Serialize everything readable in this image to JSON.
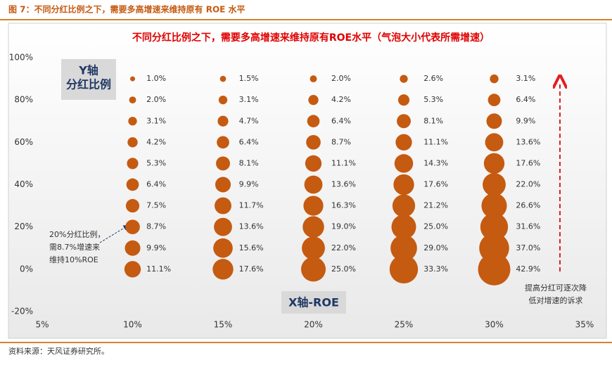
{
  "figure_caption": "图 7：不同分红比例之下，需要多高增速来维持原有 ROE 水平",
  "source": "资料来源：天风证券研究所。",
  "chart_data": {
    "type": "bubble",
    "title": "不同分红比例之下，需要多高增速来维持原有ROE水平（气泡大小代表所需增速）",
    "x_axis_label": "X轴-ROE",
    "y_axis_label": [
      "Y轴",
      "分红比例"
    ],
    "annotations": [
      [
        "20%分红比例，",
        "需8.7%增速来",
        "维持10%ROE"
      ],
      [
        "提高分红可逐次降",
        "低对增速的诉求"
      ]
    ],
    "color": "#c55a11",
    "x": [
      10,
      10,
      10,
      10,
      10,
      10,
      10,
      10,
      10,
      10,
      15,
      15,
      15,
      15,
      15,
      15,
      15,
      15,
      15,
      15,
      20,
      20,
      20,
      20,
      20,
      20,
      20,
      20,
      20,
      20,
      25,
      25,
      25,
      25,
      25,
      25,
      25,
      25,
      25,
      25,
      30,
      30,
      30,
      30,
      30,
      30,
      30,
      30,
      30,
      30
    ],
    "y": [
      90,
      80,
      70,
      60,
      50,
      40,
      30,
      20,
      10,
      0,
      90,
      80,
      70,
      60,
      50,
      40,
      30,
      20,
      10,
      0,
      90,
      80,
      70,
      60,
      50,
      40,
      30,
      20,
      10,
      0,
      90,
      80,
      70,
      60,
      50,
      40,
      30,
      20,
      10,
      0,
      90,
      80,
      70,
      60,
      50,
      40,
      30,
      20,
      10,
      0
    ],
    "sizes": [
      1.0,
      2.0,
      3.1,
      4.2,
      5.3,
      6.4,
      7.5,
      8.7,
      9.9,
      11.1,
      1.5,
      3.1,
      4.7,
      6.4,
      8.1,
      9.9,
      11.7,
      13.6,
      15.6,
      17.6,
      2.0,
      4.2,
      6.4,
      8.7,
      11.1,
      13.6,
      16.3,
      19.0,
      22.0,
      25.0,
      2.6,
      5.3,
      8.1,
      11.1,
      14.3,
      17.6,
      21.2,
      25.0,
      29.0,
      33.3,
      3.1,
      6.4,
      9.9,
      13.6,
      17.6,
      22.0,
      26.6,
      31.6,
      37.0,
      42.9
    ],
    "value_labels": [
      "1.0%",
      "2.0%",
      "3.1%",
      "4.2%",
      "5.3%",
      "6.4%",
      "7.5%",
      "8.7%",
      "9.9%",
      "11.1%",
      "1.5%",
      "3.1%",
      "4.7%",
      "6.4%",
      "8.1%",
      "9.9%",
      "11.7%",
      "13.6%",
      "15.6%",
      "17.6%",
      "2.0%",
      "4.2%",
      "6.4%",
      "8.7%",
      "11.1%",
      "13.6%",
      "16.3%",
      "19.0%",
      "22.0%",
      "25.0%",
      "2.6%",
      "5.3%",
      "8.1%",
      "11.1%",
      "14.3%",
      "17.6%",
      "21.2%",
      "25.0%",
      "29.0%",
      "33.3%",
      "3.1%",
      "6.4%",
      "9.9%",
      "13.6%",
      "17.6%",
      "22.0%",
      "26.6%",
      "31.6%",
      "37.0%",
      "42.9%"
    ],
    "xlim": [
      5,
      35
    ],
    "ylim": [
      -20,
      100
    ],
    "xticks": [
      {
        "value": 5,
        "label": "5%"
      },
      {
        "value": 10,
        "label": "10%"
      },
      {
        "value": 15,
        "label": "15%"
      },
      {
        "value": 20,
        "label": "20%"
      },
      {
        "value": 25,
        "label": "25%"
      },
      {
        "value": 30,
        "label": "30%"
      },
      {
        "value": 35,
        "label": "35%"
      }
    ],
    "yticks": [
      {
        "value": -20,
        "label": "-20%"
      },
      {
        "value": 0,
        "label": "0%"
      },
      {
        "value": 20,
        "label": "20%"
      },
      {
        "value": 40,
        "label": "40%"
      },
      {
        "value": 60,
        "label": "60%"
      },
      {
        "value": 80,
        "label": "80%"
      },
      {
        "value": 100,
        "label": "100%"
      }
    ]
  }
}
